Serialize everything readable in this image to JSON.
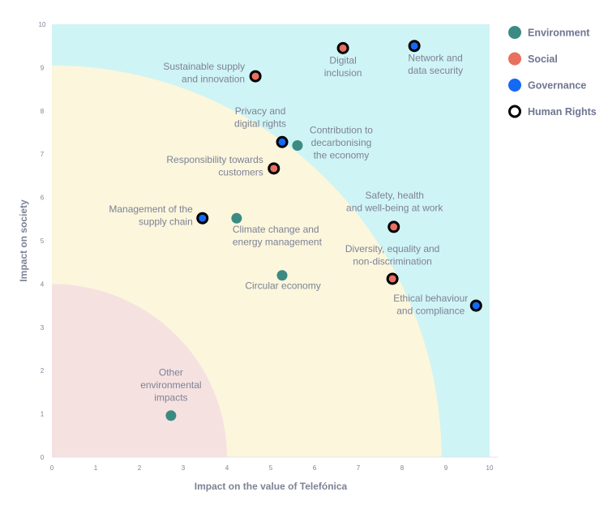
{
  "chart_data": {
    "type": "scatter",
    "title": "",
    "xlabel": "Impact on the value of Telefónica",
    "ylabel": "Impact on society",
    "xlim": [
      0,
      10
    ],
    "ylim": [
      0,
      10
    ],
    "xticks": [
      "0",
      "1",
      "2",
      "3",
      "4",
      "5",
      "6",
      "7",
      "8",
      "9",
      "10"
    ],
    "yticks": [
      "0",
      "1",
      "2",
      "3",
      "4",
      "5",
      "6",
      "7",
      "8",
      "9",
      "10"
    ],
    "grid": false,
    "legend_position": "right",
    "zones": [
      {
        "shape": "quarter-ellipse",
        "radius_x": 4,
        "radius_y": 4,
        "color": "#f6e1e1"
      },
      {
        "shape": "quarter-ellipse",
        "radius_x": 8.9,
        "radius_y": 9.05,
        "color": "#fbf6dc"
      },
      {
        "shape": "rectangle",
        "color": "#cff4f5"
      }
    ],
    "categories": [
      {
        "name": "Environment",
        "color": "#3b8b82",
        "ring": false
      },
      {
        "name": "Social",
        "color": "#e8705f",
        "ring": false
      },
      {
        "name": "Governance",
        "color": "#1469f5",
        "ring": false
      },
      {
        "name": "Human Rights",
        "color": "#ffffff",
        "ring": true
      }
    ],
    "points": [
      {
        "label": [
          "Sustainable supply",
          "and innovation"
        ],
        "x": 4.65,
        "y": 8.8,
        "category": "Social",
        "human_rights": true
      },
      {
        "label": [
          "Digital",
          "inclusion"
        ],
        "x": 6.65,
        "y": 9.45,
        "category": "Social",
        "human_rights": true
      },
      {
        "label": [
          "Network and",
          "data security"
        ],
        "x": 8.28,
        "y": 9.5,
        "category": "Governance",
        "human_rights": true
      },
      {
        "label": [
          "Privacy and",
          "digital rights"
        ],
        "x": 5.26,
        "y": 7.28,
        "category": "Governance",
        "human_rights": true
      },
      {
        "label": [
          "Contribution to",
          "decarbonising",
          "the economy"
        ],
        "x": 5.61,
        "y": 7.2,
        "category": "Environment",
        "human_rights": false
      },
      {
        "label": [
          "Responsibility towards",
          "customers"
        ],
        "x": 5.07,
        "y": 6.67,
        "category": "Social",
        "human_rights": true
      },
      {
        "label": [
          "Management of the",
          "supply chain"
        ],
        "x": 3.44,
        "y": 5.52,
        "category": "Governance",
        "human_rights": true
      },
      {
        "label": [
          "Climate change and",
          "energy management"
        ],
        "x": 4.22,
        "y": 5.52,
        "category": "Environment",
        "human_rights": false
      },
      {
        "label": [
          "Safety, health",
          "and well-being at work"
        ],
        "x": 7.81,
        "y": 5.32,
        "category": "Social",
        "human_rights": true
      },
      {
        "label": [
          "Circular economy"
        ],
        "x": 5.26,
        "y": 4.2,
        "category": "Environment",
        "human_rights": false
      },
      {
        "label": [
          "Diversity, equality and",
          "non-discrimination"
        ],
        "x": 7.78,
        "y": 4.12,
        "category": "Social",
        "human_rights": true
      },
      {
        "label": [
          "Ethical behaviour",
          "and compliance"
        ],
        "x": 9.69,
        "y": 3.5,
        "category": "Governance",
        "human_rights": true
      },
      {
        "label": [
          "Other",
          "environmental",
          "impacts"
        ],
        "x": 2.72,
        "y": 0.96,
        "category": "Environment",
        "human_rights": false
      }
    ]
  }
}
